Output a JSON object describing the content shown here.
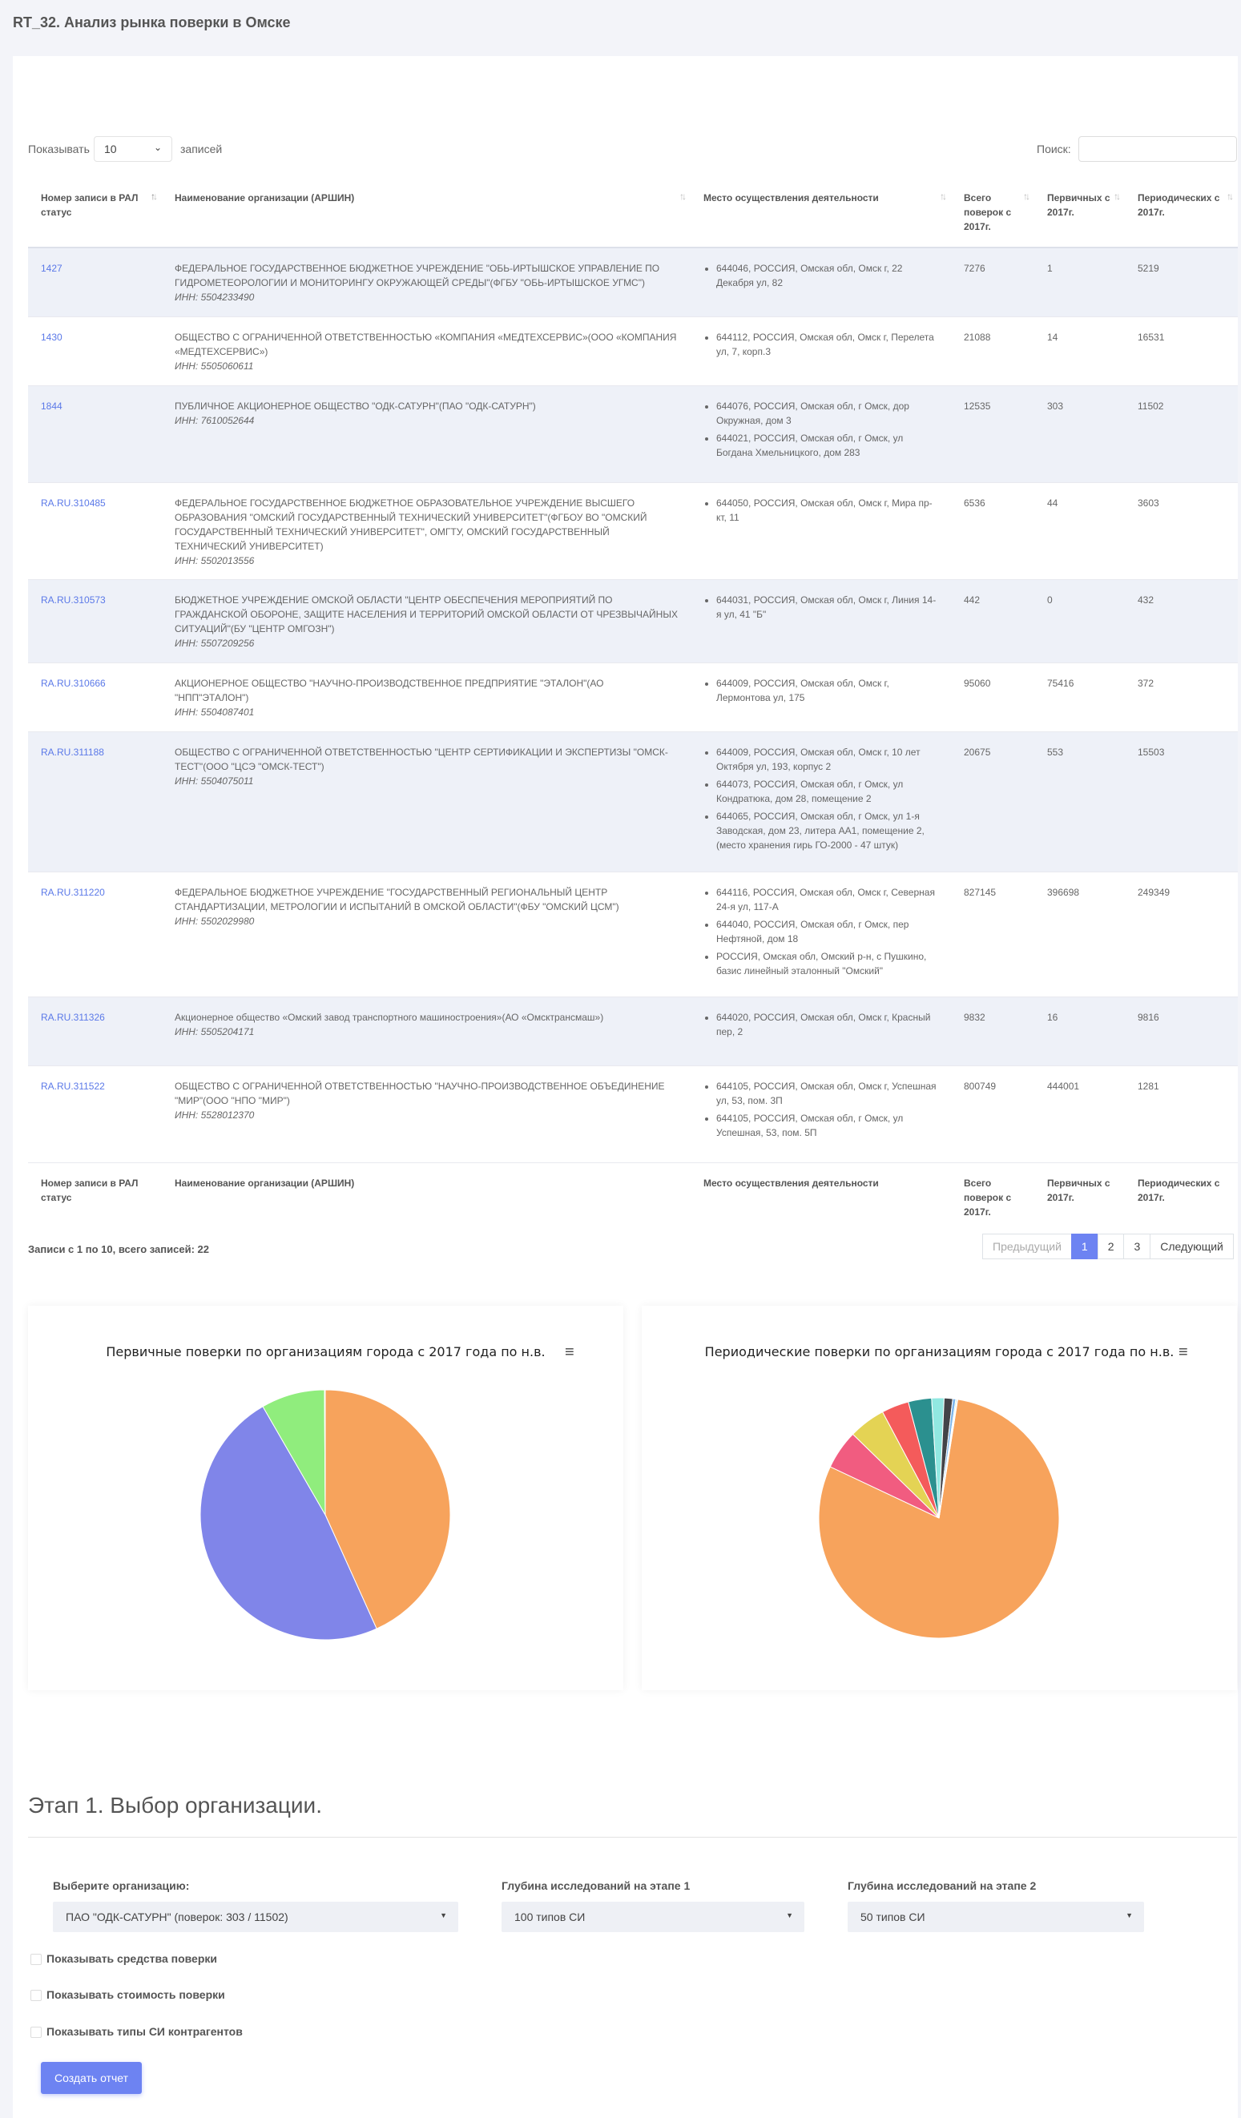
{
  "page_title": "RT_32. Анализ рынка поверки в Омске",
  "table_controls": {
    "show_label": "Показывать",
    "page_length": "10",
    "records_label": "записей",
    "search_label": "Поиск:",
    "search_value": ""
  },
  "columns": {
    "reg": "Номер записи в РАЛ статус",
    "name": "Наименование организации (АРШИН)",
    "place": "Место осуществления деятельности",
    "total": "Всего поверок с 2017г.",
    "primary": "Первичных с 2017г.",
    "periodic": "Периодических с 2017г."
  },
  "rows": [
    {
      "reg": "1427",
      "name": "ФЕДЕРАЛЬНОЕ ГОСУДАРСТВЕННОЕ БЮДЖЕТНОЕ УЧРЕЖДЕНИЕ \"ОБЬ-ИРТЫШСКОЕ УПРАВЛЕНИЕ ПО ГИДРОМЕТЕОРОЛОГИИ И МОНИТОРИНГУ ОКРУЖАЮЩЕЙ СРЕДЫ\"(ФГБУ \"ОБЬ-ИРТЫШСКОЕ УГМС\")",
      "inn": "ИНН: 5504233490",
      "places": [
        "644046, РОССИЯ, Омская обл, Омск г, 22 Декабря ул, 82"
      ],
      "total": "7276",
      "primary": "1",
      "periodic": "5219"
    },
    {
      "reg": "1430",
      "name": "ОБЩЕСТВО С ОГРАНИЧЕННОЙ ОТВЕТСТВЕННОСТЬЮ «КОМПАНИЯ «МЕДТЕХСЕРВИС»(ООО «КОМПАНИЯ «МЕДТЕХСЕРВИС»)",
      "inn": "ИНН: 5505060611",
      "places": [
        "644112, РОССИЯ, Омская обл, Омск г, Перелета ул, 7, корп.3"
      ],
      "total": "21088",
      "primary": "14",
      "periodic": "16531"
    },
    {
      "reg": "1844",
      "name": "ПУБЛИЧНОЕ АКЦИОНЕРНОЕ ОБЩЕСТВО \"ОДК-САТУРН\"(ПАО \"ОДК-САТУРН\")",
      "inn": "ИНН: 7610052644",
      "places": [
        "644076, РОССИЯ, Омская обл, г Омск, дор Окружная, дом 3",
        "644021, РОССИЯ, Омская обл, г Омск, ул Богдана Хмельницкого, дом 283"
      ],
      "total": "12535",
      "primary": "303",
      "periodic": "11502"
    },
    {
      "reg": "RA.RU.310485",
      "name": "ФЕДЕРАЛЬНОЕ ГОСУДАРСТВЕННОЕ БЮДЖЕТНОЕ ОБРАЗОВАТЕЛЬНОЕ УЧРЕЖДЕНИЕ ВЫСШЕГО ОБРАЗОВАНИЯ \"ОМСКИЙ ГОСУДАРСТВЕННЫЙ ТЕХНИЧЕСКИЙ УНИВЕРСИТЕТ\"(ФГБОУ ВО \"ОМСКИЙ ГОСУДАРСТВЕННЫЙ ТЕХНИЧЕСКИЙ УНИВЕРСИТЕТ\", ОМГТУ, ОМСКИЙ ГОСУДАРСТВЕННЫЙ ТЕХНИЧЕСКИЙ УНИВЕРСИТЕТ)",
      "inn": "ИНН: 5502013556",
      "places": [
        "644050, РОССИЯ, Омская обл, Омск г, Мира пр-кт, 11"
      ],
      "total": "6536",
      "primary": "44",
      "periodic": "3603"
    },
    {
      "reg": "RA.RU.310573",
      "name": "БЮДЖЕТНОЕ УЧРЕЖДЕНИЕ ОМСКОЙ ОБЛАСТИ \"ЦЕНТР ОБЕСПЕЧЕНИЯ МЕРОПРИЯТИЙ ПО ГРАЖДАНСКОЙ ОБОРОНЕ, ЗАЩИТЕ НАСЕЛЕНИЯ И ТЕРРИТОРИЙ ОМСКОЙ ОБЛАСТИ ОТ ЧРЕЗВЫЧАЙНЫХ СИТУАЦИЙ\"(БУ \"ЦЕНТР ОМГОЗН\")",
      "inn": "ИНН: 5507209256",
      "places": [
        "644031, РОССИЯ, Омская обл, Омск г, Линия 14-я ул, 41 \"Б\""
      ],
      "total": "442",
      "primary": "0",
      "periodic": "432"
    },
    {
      "reg": "RA.RU.310666",
      "name": "АКЦИОНЕРНОЕ ОБЩЕСТВО \"НАУЧНО-ПРОИЗВОДСТВЕННОЕ ПРЕДПРИЯТИЕ \"ЭТАЛОН\"(АО \"НПП\"ЭТАЛОН\")",
      "inn": "ИНН: 5504087401",
      "places": [
        "644009, РОССИЯ, Омская обл, Омск г, Лермонтова ул, 175"
      ],
      "total": "95060",
      "primary": "75416",
      "periodic": "372"
    },
    {
      "reg": "RA.RU.311188",
      "name": "ОБЩЕСТВО С ОГРАНИЧЕННОЙ ОТВЕТСТВЕННОСТЬЮ \"ЦЕНТР СЕРТИФИКАЦИИ И ЭКСПЕРТИЗЫ \"ОМСК-ТЕСТ\"(ООО \"ЦСЭ \"ОМСК-ТЕСТ\")",
      "inn": "ИНН: 5504075011",
      "places": [
        "644009, РОССИЯ, Омская обл, Омск г, 10 лет Октября ул, 193, корпус 2",
        "644073, РОССИЯ, Омская обл, г Омск, ул Кондратюка, дом 28, помещение 2",
        "644065, РОССИЯ, Омская обл, г Омск, ул 1-я Заводская, дом 23, литера АА1, помещение 2, (место хранения гирь ГО-2000 - 47 штук)"
      ],
      "total": "20675",
      "primary": "553",
      "periodic": "15503"
    },
    {
      "reg": "RA.RU.311220",
      "name": "ФЕДЕРАЛЬНОЕ БЮДЖЕТНОЕ УЧРЕЖДЕНИЕ \"ГОСУДАРСТВЕННЫЙ РЕГИОНАЛЬНЫЙ ЦЕНТР СТАНДАРТИЗАЦИИ, МЕТРОЛОГИИ И ИСПЫТАНИЙ В ОМСКОЙ ОБЛАСТИ\"(ФБУ \"ОМСКИЙ ЦСМ\")",
      "inn": "ИНН: 5502029980",
      "places": [
        "644116, РОССИЯ, Омская обл, Омск г, Северная 24-я ул, 117-А",
        "644040, РОССИЯ, Омская обл, г Омск, пер Нефтяной, дом 18",
        "РОССИЯ, Омская обл, Омский р-н, с Пушкино, базис линейный эталонный \"Омский\""
      ],
      "total": "827145",
      "primary": "396698",
      "periodic": "249349"
    },
    {
      "reg": "RA.RU.311326",
      "name": "Акционерное общество «Омский завод транспортного машиностроения»(АО «Омсктрансмаш»)",
      "inn": "ИНН: 5505204171",
      "places": [
        "644020, РОССИЯ, Омская обл, Омск г, Красный пер, 2"
      ],
      "total": "9832",
      "primary": "16",
      "periodic": "9816"
    },
    {
      "reg": "RA.RU.311522",
      "name": "ОБЩЕСТВО С ОГРАНИЧЕННОЙ ОТВЕТСТВЕННОСТЬЮ \"НАУЧНО-ПРОИЗВОДСТВЕННОЕ ОБЪЕДИНЕНИЕ \"МИР\"(ООО \"НПО \"МИР\")",
      "inn": "ИНН: 5528012370",
      "places": [
        "644105, РОССИЯ, Омская обл, Омск г, Успешная ул, 53, пом. 3П",
        "644105, РОССИЯ, Омская обл, г Омск, ул Успешная, 53, пом. 5П"
      ],
      "total": "800749",
      "primary": "444001",
      "periodic": "1281"
    }
  ],
  "table_info": "Записи с 1 по 10, всего записей: 22",
  "pagination": {
    "prev": "Предыдущий",
    "pages": [
      "1",
      "2",
      "3"
    ],
    "active": "1",
    "next": "Следующий"
  },
  "chart_data": [
    {
      "type": "pie",
      "title": "Первичные поверки по организациям города с 2017 года по н.в.",
      "values": [
        396698,
        444001,
        75416,
        553,
        303,
        44,
        16,
        14,
        1,
        0
      ],
      "colors": [
        "#f7a35c",
        "#8085e9",
        "#90ed7d",
        "#7cb5ec",
        "#f15c80",
        "#434348",
        "#e4d354",
        "#2b908f",
        "#f45b5b",
        "#91e8e1"
      ],
      "menu_icon": "hamburger-icon"
    },
    {
      "type": "pie",
      "title": "Периодические поверки по организациям города с 2017 года по н.в.",
      "values": [
        249349,
        16531,
        15503,
        11502,
        9816,
        5219,
        3603,
        1281,
        432,
        372
      ],
      "colors": [
        "#f7a35c",
        "#f15c80",
        "#e4d354",
        "#f45b5b",
        "#2b908f",
        "#91e8e1",
        "#434348",
        "#7cb5ec",
        "#90ed7d",
        "#8085e9"
      ],
      "menu_icon": "hamburger-icon"
    }
  ],
  "stage": {
    "title": "Этап 1. Выбор организации.",
    "org_label": "Выберите организацию:",
    "org_value": "ПАО \"ОДК-САТУРН\" (поверок: 303 / 11502)",
    "depth1_label": "Глубина исследований на этапе 1",
    "depth1_value": "100 типов СИ",
    "depth2_label": "Глубина исследований на этапе 2",
    "depth2_value": "50 типов СИ",
    "check_tools": "Показывать средства поверки",
    "check_cost": "Показывать стоимость поверки",
    "check_types": "Показывать типы СИ контрагентов",
    "submit": "Создать отчет"
  }
}
